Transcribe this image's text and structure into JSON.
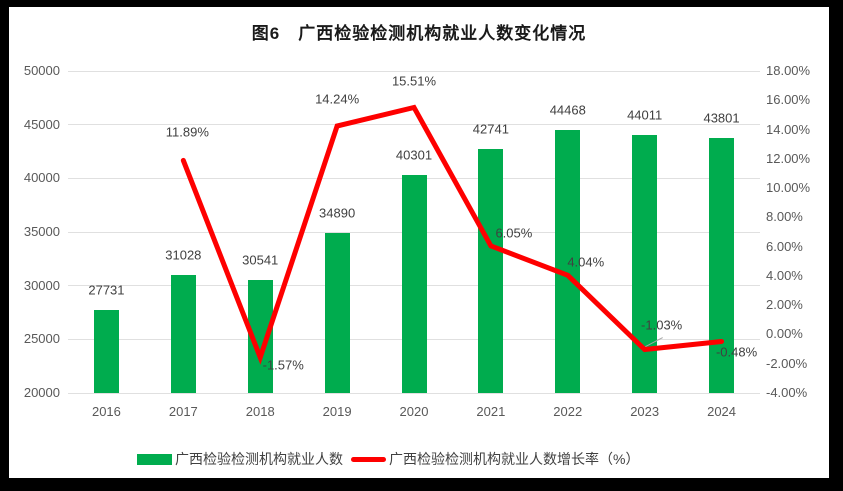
{
  "figure": {
    "title": "图6　广西检验检测机构就业人数变化情况"
  },
  "chart_data": {
    "type": "combo",
    "title": "图6　广西检验检测机构就业人数变化情况",
    "categories": [
      "2016",
      "2017",
      "2018",
      "2019",
      "2020",
      "2021",
      "2022",
      "2023",
      "2024"
    ],
    "series": [
      {
        "name": "广西检验检测机构就业人数",
        "type": "bar",
        "axis": "left",
        "color": "#00AC4E",
        "values": [
          27731,
          31028,
          30541,
          34890,
          40301,
          42741,
          44468,
          44011,
          43801
        ],
        "labels": [
          "27731",
          "31028",
          "30541",
          "34890",
          "40301",
          "42741",
          "44468",
          "44011",
          "43801"
        ]
      },
      {
        "name": "广西检验检测机构就业人数增长率（%）",
        "type": "line",
        "axis": "right",
        "color": "#FE0000",
        "values": [
          null,
          11.89,
          -1.57,
          14.24,
          15.51,
          6.05,
          4.04,
          -1.03,
          -0.48
        ],
        "labels": [
          null,
          "11.89%",
          "-1.57%",
          "14.24%",
          "15.51%",
          "6.05%",
          "4.04%",
          "-1.03%",
          "-0.48%"
        ]
      }
    ],
    "left_axis": {
      "min": 20000,
      "max": 50000,
      "step": 5000,
      "ticks": [
        "50000",
        "45000",
        "40000",
        "35000",
        "30000",
        "25000",
        "20000"
      ]
    },
    "right_axis": {
      "min": -4,
      "max": 18,
      "step": 2,
      "ticks": [
        "18.00%",
        "16.00%",
        "14.00%",
        "12.00%",
        "10.00%",
        "8.00%",
        "6.00%",
        "4.00%",
        "2.00%",
        "0.00%",
        "-2.00%",
        "-4.00%"
      ]
    },
    "grid": true,
    "legend_position": "bottom",
    "colors": {
      "bar": "#00AC4E",
      "line": "#FE0000",
      "grid": "#E0E0E0",
      "axis_text": "#595959",
      "data_label": "#404040",
      "leader_line": "#A6A6A6",
      "frame": "#000000",
      "background": "#FFFFFF"
    }
  }
}
